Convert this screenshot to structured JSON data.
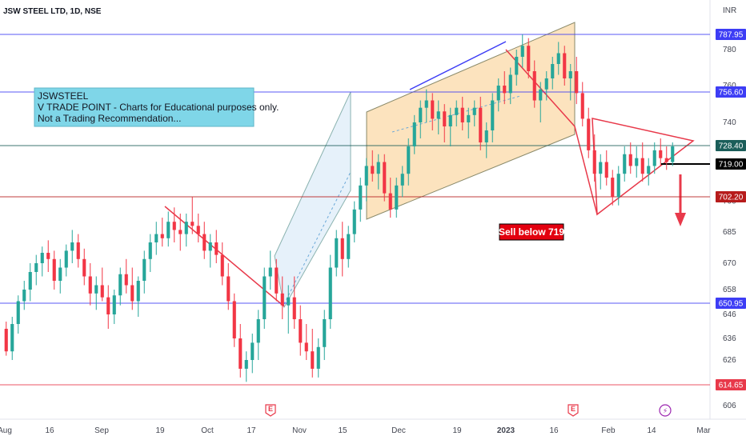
{
  "header": {
    "symbol": "JSW STEEL LTD, 1D, NSE",
    "currency": "INR"
  },
  "note": {
    "lines": [
      "JSWSTEEL",
      "V TRADE POINT - Charts for Educational purposes only.",
      "Not a Trading Recommendation..."
    ],
    "fill": "#7fd6e8"
  },
  "sell_label": "Sell below 719",
  "colors": {
    "up": "#26a69a",
    "down": "#f23645",
    "blue_line": "#3d3df5",
    "red_line": "#e8394a",
    "channel_fill": "#fbd9a8",
    "channel_blue": "#dcebf8"
  },
  "chart_data": {
    "type": "candlestick",
    "ylim": [
      606,
      798
    ],
    "yticks": [
      606,
      626,
      636,
      646,
      658,
      670,
      685,
      700,
      740,
      760,
      780
    ],
    "xticks": [
      "Aug",
      "16",
      "Sep",
      "19",
      "Oct",
      "17",
      "Nov",
      "15",
      "Dec",
      "19",
      "2023",
      "16",
      "Feb",
      "14",
      "Mar"
    ],
    "levels": [
      {
        "value": 787.95,
        "label": "787.95",
        "color": "#3d3df5"
      },
      {
        "value": 756.6,
        "label": "756.60",
        "color": "#3d3df5"
      },
      {
        "value": 728.4,
        "label": "728.40",
        "color": "#1b5e5a"
      },
      {
        "value": 719.0,
        "label": "719.00",
        "color": "#000000"
      },
      {
        "value": 702.2,
        "label": "702.20",
        "color": "#b71c1c"
      },
      {
        "value": 650.95,
        "label": "650.95",
        "color": "#3d3df5"
      },
      {
        "value": 614.65,
        "label": "614.65",
        "color": "#e8394a"
      }
    ],
    "events": [
      {
        "x": "Oct 24",
        "symbol": "E"
      },
      {
        "x": "Jan 25",
        "symbol": "E"
      },
      {
        "x": "Feb 16",
        "symbol": "⚡"
      }
    ],
    "candles": [
      [
        640,
        643,
        628,
        630
      ],
      [
        630,
        645,
        626,
        642
      ],
      [
        642,
        655,
        638,
        652
      ],
      [
        652,
        662,
        648,
        658
      ],
      [
        658,
        670,
        652,
        666
      ],
      [
        666,
        674,
        660,
        670
      ],
      [
        670,
        678,
        664,
        675
      ],
      [
        675,
        681,
        666,
        672
      ],
      [
        672,
        676,
        658,
        662
      ],
      [
        662,
        672,
        656,
        668
      ],
      [
        668,
        679,
        664,
        676
      ],
      [
        676,
        686,
        670,
        680
      ],
      [
        680,
        684,
        668,
        672
      ],
      [
        672,
        677,
        660,
        664
      ],
      [
        664,
        670,
        650,
        656
      ],
      [
        656,
        664,
        648,
        660
      ],
      [
        660,
        668,
        652,
        654
      ],
      [
        654,
        660,
        640,
        646
      ],
      [
        646,
        658,
        642,
        655
      ],
      [
        655,
        668,
        650,
        665
      ],
      [
        665,
        672,
        656,
        660
      ],
      [
        660,
        668,
        648,
        652
      ],
      [
        652,
        664,
        645,
        662
      ],
      [
        662,
        676,
        656,
        672
      ],
      [
        672,
        684,
        666,
        680
      ],
      [
        680,
        690,
        674,
        684
      ],
      [
        684,
        692,
        678,
        682
      ],
      [
        682,
        695,
        678,
        690
      ],
      [
        690,
        697,
        680,
        686
      ],
      [
        686,
        694,
        676,
        684
      ],
      [
        684,
        694,
        678,
        690
      ],
      [
        690,
        702,
        684,
        688
      ],
      [
        688,
        694,
        680,
        684
      ],
      [
        684,
        690,
        672,
        676
      ],
      [
        676,
        684,
        668,
        680
      ],
      [
        680,
        686,
        670,
        674
      ],
      [
        674,
        680,
        660,
        664
      ],
      [
        664,
        670,
        648,
        652
      ],
      [
        652,
        656,
        632,
        636
      ],
      [
        636,
        642,
        618,
        622
      ],
      [
        622,
        630,
        616,
        626
      ],
      [
        626,
        638,
        620,
        634
      ],
      [
        634,
        648,
        626,
        644
      ],
      [
        644,
        668,
        640,
        664
      ],
      [
        664,
        676,
        658,
        668
      ],
      [
        668,
        672,
        652,
        656
      ],
      [
        656,
        664,
        644,
        650
      ],
      [
        650,
        660,
        638,
        654
      ],
      [
        654,
        664,
        640,
        644
      ],
      [
        644,
        650,
        628,
        634
      ],
      [
        634,
        642,
        626,
        630
      ],
      [
        630,
        640,
        618,
        622
      ],
      [
        622,
        636,
        618,
        632
      ],
      [
        632,
        648,
        626,
        644
      ],
      [
        644,
        674,
        640,
        668
      ],
      [
        668,
        686,
        664,
        682
      ],
      [
        682,
        690,
        664,
        672
      ],
      [
        672,
        688,
        668,
        684
      ],
      [
        684,
        700,
        680,
        696
      ],
      [
        696,
        712,
        690,
        708
      ],
      [
        708,
        722,
        700,
        718
      ],
      [
        718,
        726,
        710,
        714
      ],
      [
        714,
        724,
        706,
        720
      ],
      [
        720,
        724,
        700,
        704
      ],
      [
        704,
        712,
        692,
        696
      ],
      [
        696,
        712,
        692,
        708
      ],
      [
        708,
        718,
        702,
        714
      ],
      [
        714,
        732,
        708,
        728
      ],
      [
        728,
        744,
        724,
        740
      ],
      [
        740,
        752,
        732,
        748
      ],
      [
        748,
        758,
        740,
        752
      ],
      [
        752,
        756,
        736,
        742
      ],
      [
        742,
        752,
        734,
        746
      ],
      [
        746,
        750,
        730,
        738
      ],
      [
        738,
        748,
        728,
        744
      ],
      [
        744,
        752,
        738,
        748
      ],
      [
        748,
        754,
        736,
        740
      ],
      [
        740,
        748,
        732,
        744
      ],
      [
        744,
        752,
        738,
        748
      ],
      [
        748,
        754,
        726,
        730
      ],
      [
        730,
        740,
        722,
        736
      ],
      [
        736,
        756,
        730,
        752
      ],
      [
        752,
        764,
        746,
        760
      ],
      [
        760,
        768,
        750,
        756
      ],
      [
        756,
        770,
        750,
        766
      ],
      [
        766,
        780,
        760,
        776
      ],
      [
        776,
        788,
        770,
        782
      ],
      [
        782,
        786,
        764,
        768
      ],
      [
        768,
        774,
        748,
        752
      ],
      [
        752,
        762,
        740,
        758
      ],
      [
        758,
        768,
        752,
        764
      ],
      [
        764,
        776,
        758,
        772
      ],
      [
        772,
        784,
        766,
        778
      ],
      [
        778,
        782,
        760,
        764
      ],
      [
        764,
        772,
        752,
        768
      ],
      [
        768,
        776,
        750,
        756
      ],
      [
        756,
        762,
        738,
        742
      ],
      [
        742,
        748,
        722,
        726
      ],
      [
        726,
        734,
        710,
        714
      ],
      [
        714,
        724,
        706,
        720
      ],
      [
        720,
        726,
        708,
        712
      ],
      [
        712,
        716,
        698,
        702
      ],
      [
        702,
        718,
        698,
        714
      ],
      [
        714,
        728,
        710,
        724
      ],
      [
        724,
        730,
        714,
        718
      ],
      [
        718,
        728,
        712,
        722
      ],
      [
        722,
        730,
        710,
        714
      ],
      [
        714,
        722,
        708,
        718
      ],
      [
        718,
        730,
        714,
        726
      ],
      [
        726,
        732,
        718,
        722
      ],
      [
        722,
        728,
        716,
        720
      ],
      [
        720,
        730,
        718,
        728
      ]
    ]
  }
}
